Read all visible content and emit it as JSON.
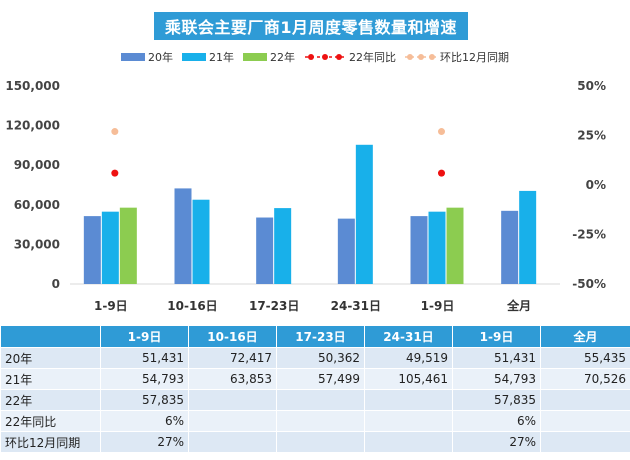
{
  "title": "乘联会主要厂商1月周度零售数量和增速",
  "legend": [
    "20年",
    "21年",
    "22年",
    "22年同比",
    "环比12月同期"
  ],
  "colors": {
    "y20": "#5b8bd3",
    "y21": "#18b0ea",
    "y22": "#8ccc50",
    "yoy": "#ee1111",
    "mom": "#f6bd98",
    "header": "#2f9bd6"
  },
  "chart_data": {
    "type": "bar",
    "title": "乘联会主要厂商1月周度零售数量和增速",
    "categories": [
      "1-9日",
      "10-16日",
      "17-23日",
      "24-31日",
      "1-9日",
      "全月"
    ],
    "series": [
      {
        "name": "20年",
        "values": [
          51431,
          72417,
          50362,
          49519,
          51431,
          55435
        ]
      },
      {
        "name": "21年",
        "values": [
          54793,
          63853,
          57499,
          105461,
          54793,
          70526
        ]
      },
      {
        "name": "22年",
        "values": [
          57835,
          null,
          null,
          null,
          57835,
          null
        ]
      }
    ],
    "secondary_series": [
      {
        "name": "22年同比",
        "values": [
          6,
          null,
          null,
          null,
          6,
          null
        ]
      },
      {
        "name": "环比12月同期",
        "values": [
          27,
          null,
          null,
          null,
          27,
          null
        ]
      }
    ],
    "ylim": [
      0,
      150000
    ],
    "yticks": [
      "0",
      "30,000",
      "60,000",
      "90,000",
      "120,000",
      "150,000"
    ],
    "y2lim": [
      -50,
      50
    ],
    "y2ticks": [
      "-50%",
      "-25%",
      "0%",
      "25%",
      "50%"
    ],
    "legend_position": "top"
  },
  "table": {
    "headers": [
      "",
      "1-9日",
      "10-16日",
      "17-23日",
      "24-31日",
      "1-9日",
      "全月"
    ],
    "rows": [
      {
        "label": "20年",
        "cells": [
          "51,431",
          "72,417",
          "50,362",
          "49,519",
          "51,431",
          "55,435"
        ]
      },
      {
        "label": "21年",
        "cells": [
          "54,793",
          "63,853",
          "57,499",
          "105,461",
          "54,793",
          "70,526"
        ]
      },
      {
        "label": "22年",
        "cells": [
          "57,835",
          "",
          "",
          "",
          "57,835",
          ""
        ]
      },
      {
        "label": "22年同比",
        "cells": [
          "6%",
          "",
          "",
          "",
          "6%",
          ""
        ]
      },
      {
        "label": "环比12月同期",
        "cells": [
          "27%",
          "",
          "",
          "",
          "27%",
          ""
        ]
      }
    ]
  }
}
